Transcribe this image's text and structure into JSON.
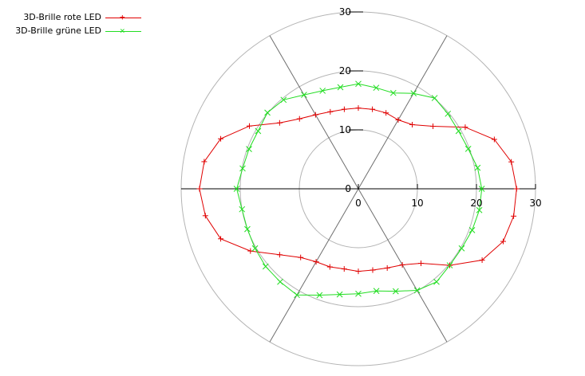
{
  "chart_data": {
    "type": "line",
    "subtype": "polar",
    "title": "",
    "radial_axis": {
      "range": [
        0,
        30
      ],
      "ticks": [
        0,
        10,
        20,
        30
      ],
      "grid": true
    },
    "x_tick_labels": [
      "0",
      "10",
      "20",
      "30"
    ],
    "y_tick_labels": [
      "0",
      "10",
      "20",
      "30"
    ],
    "angular_grid_deg": [
      0,
      60,
      120,
      180,
      240,
      300
    ],
    "legend": {
      "position": "top-left"
    },
    "angles_deg": [
      0,
      10,
      20,
      30,
      40,
      50,
      60,
      70,
      80,
      90,
      100,
      110,
      120,
      130,
      140,
      150,
      160,
      170,
      180,
      190,
      200,
      210,
      220,
      230,
      240,
      250,
      260,
      270,
      280,
      290,
      300,
      310,
      320,
      330,
      340,
      350
    ],
    "series": [
      {
        "name": "3D-Brille rote LED",
        "color": "#e00000",
        "marker": "+",
        "values": [
          26.8,
          26.3,
          24.5,
          20.9,
          16.5,
          14.2,
          13.5,
          13.7,
          13.7,
          13.7,
          13.7,
          13.9,
          14.5,
          15.5,
          17.4,
          21.3,
          24.8,
          26.5,
          26.9,
          26.3,
          24.8,
          21.1,
          17.4,
          15.2,
          14.3,
          14.1,
          13.8,
          14.0,
          14.0,
          14.3,
          14.9,
          16.5,
          20.2,
          24.2,
          26.1,
          26.7
        ]
      },
      {
        "name": "3D-Brille grüne LED",
        "color": "#22dd22",
        "marker": "x",
        "values": [
          20.9,
          20.5,
          19.8,
          19.6,
          19.8,
          20.1,
          18.7,
          17.3,
          17.4,
          17.8,
          17.5,
          17.7,
          18.4,
          19.7,
          20.1,
          19.6,
          19.7,
          19.9,
          20.6,
          20.0,
          20.0,
          20.2,
          20.5,
          20.6,
          20.8,
          19.2,
          18.2,
          17.8,
          17.6,
          18.5,
          19.9,
          20.6,
          20.2,
          20.2,
          20.5,
          20.8
        ]
      }
    ]
  }
}
